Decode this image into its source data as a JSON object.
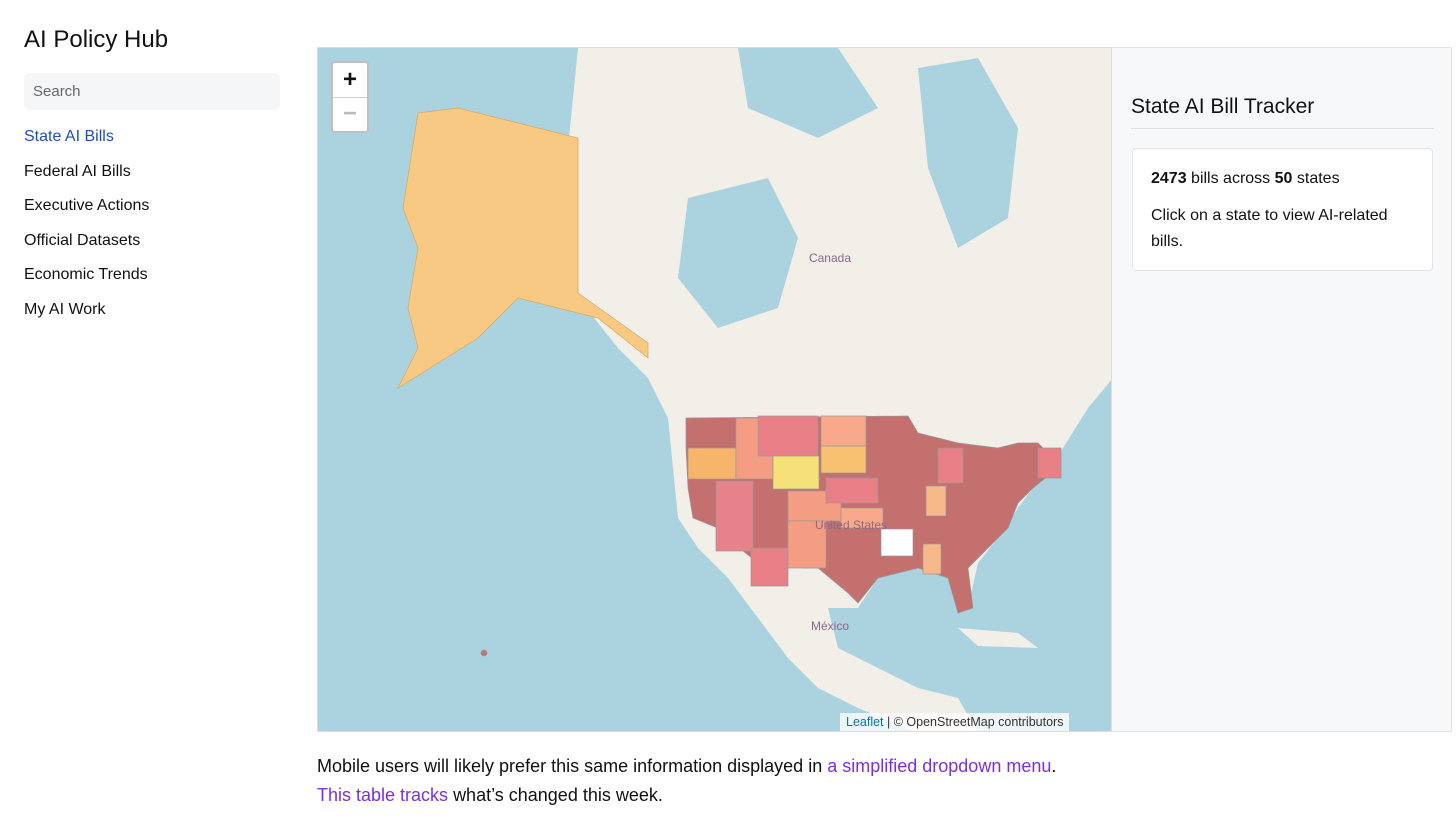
{
  "sidebar": {
    "title": "AI Policy Hub",
    "search_placeholder": "Search",
    "nav": [
      "State AI Bills",
      "Federal AI Bills",
      "Executive Actions",
      "Official Datasets",
      "Economic Trends",
      "My AI Work"
    ]
  },
  "map": {
    "zoom_in": "+",
    "zoom_out": "−",
    "labels": [
      "Canada",
      "United States",
      "México"
    ],
    "attribution": {
      "link": "Leaflet",
      "text": "| © OpenStreetMap contributors"
    }
  },
  "panel": {
    "title": "State AI Bill Tracker",
    "bill_count": 2473,
    "bills_text": "bills across",
    "state_count": 50,
    "states_text": "states",
    "hint": "Click on a state to view AI-related bills."
  },
  "footer": {
    "line1": {
      "text": "Mobile users will likely prefer this same information displayed in",
      "link": "a simplified dropdown menu",
      "end": "."
    },
    "line2": {
      "link": "This table tracks",
      "text": "what’s changed this week."
    }
  }
}
